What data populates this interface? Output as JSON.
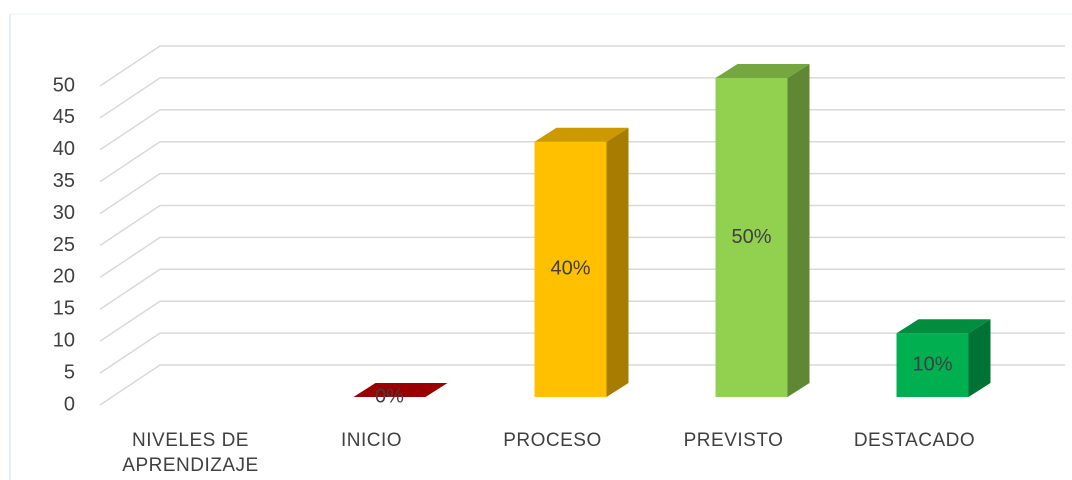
{
  "chart_data": {
    "type": "bar3d",
    "categories": [
      "NIVELES DE APRENDIZAJE",
      "INICIO",
      "PROCESO",
      "PREVISTO",
      "DESTACADO"
    ],
    "values": [
      null,
      0,
      40,
      50,
      10
    ],
    "value_labels": [
      null,
      "0%",
      "40%",
      "50%",
      "10%"
    ],
    "colors": [
      null,
      "#c00000",
      "#ffc000",
      "#92d050",
      "#00b050"
    ],
    "ylim": [
      0,
      50
    ],
    "yticks": [
      0,
      5,
      10,
      15,
      20,
      25,
      30,
      35,
      40,
      45,
      50
    ],
    "grid": true
  }
}
